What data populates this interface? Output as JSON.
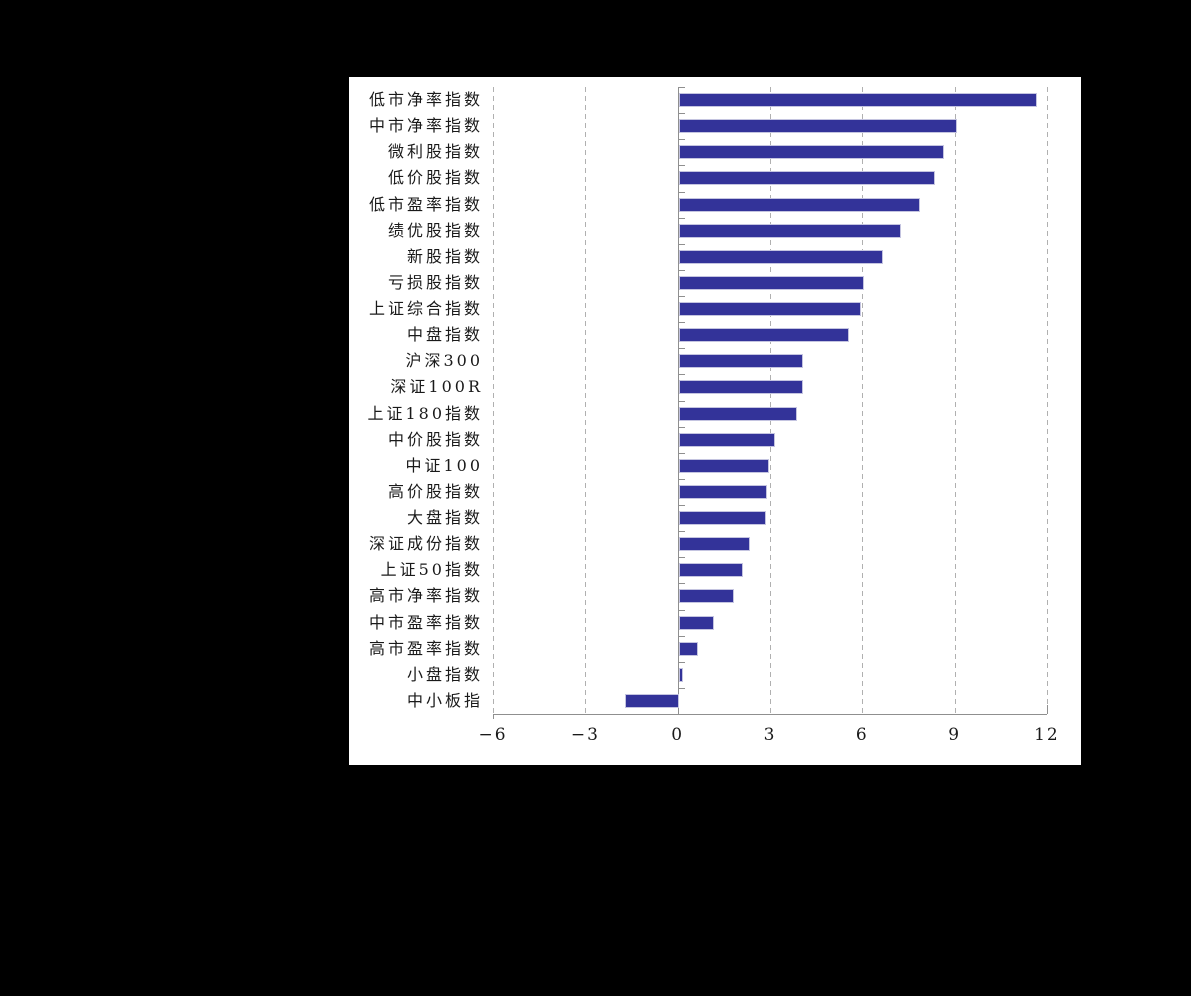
{
  "chart_data": {
    "type": "bar",
    "orientation": "horizontal",
    "title": "",
    "xlabel": "",
    "ylabel": "",
    "legend": "none",
    "grid": "dashed vertical gridlines at major x ticks",
    "xlim": [
      -6,
      12
    ],
    "x_ticks": [
      -6,
      -3,
      0,
      3,
      6,
      9,
      12
    ],
    "x_tick_labels": [
      "−6",
      "−3",
      "0",
      "3",
      "6",
      "9",
      "12"
    ],
    "categories": [
      "低市净率指数",
      "中市净率指数",
      "微利股指数",
      "低价股指数",
      "低市盈率指数",
      "绩优股指数",
      "新股指数",
      "亏损股指数",
      "上证综合指数",
      "中盘指数",
      "沪深300",
      "深证100R",
      "上证180指数",
      "中价股指数",
      "中证100",
      "高价股指数",
      "大盘指数",
      "深证成份指数",
      "上证50指数",
      "高市净率指数",
      "中市盈率指数",
      "高市盈率指数",
      "小盘指数",
      "中小板指"
    ],
    "values": [
      11.6,
      9.0,
      8.6,
      8.3,
      7.8,
      7.2,
      6.6,
      6.0,
      5.9,
      5.5,
      4.0,
      4.0,
      3.8,
      3.1,
      2.9,
      2.85,
      2.8,
      2.3,
      2.05,
      1.75,
      1.1,
      0.6,
      0.1,
      -1.7
    ],
    "colors": {
      "bar_fill": "#333399",
      "bar_border": "#c4c4e0",
      "gridline": "#b0b0b0",
      "axis_line": "#8f8f8f",
      "plot_background": "#ffffff",
      "page_background": "#000000",
      "label_text": "#1a1a1a"
    }
  }
}
